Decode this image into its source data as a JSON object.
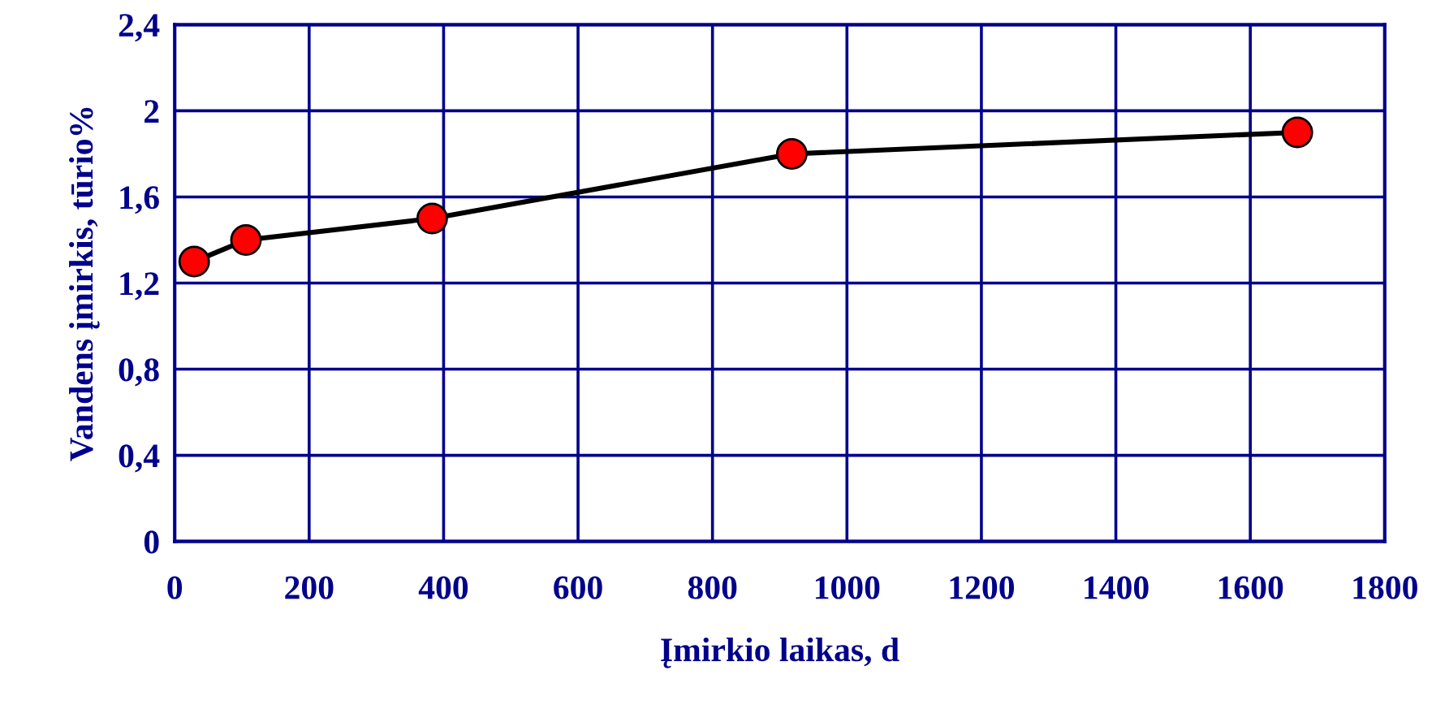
{
  "chart_data": {
    "type": "line",
    "xlabel": "Įmirkio laikas, d",
    "ylabel": "Vandens įmirkis, tūrio%",
    "x": [
      29,
      106,
      383,
      918,
      1670
    ],
    "series": [
      {
        "color": "#000000",
        "values": [
          1.3,
          1.4,
          1.5,
          1.8,
          1.9
        ]
      }
    ],
    "marker": "circle",
    "line_style": "solid",
    "xlim": [
      0,
      1800
    ],
    "xticks": [
      0,
      200,
      400,
      600,
      800,
      1000,
      1200,
      1400,
      1600,
      1800
    ],
    "ylim": [
      0,
      2.4
    ],
    "yticks": [
      0,
      {
        "value": 0.4,
        "label": "0,4"
      },
      {
        "value": 0.8,
        "label": "0,8"
      },
      {
        "value": 1.2,
        "label": "1,2"
      },
      {
        "value": 1.6,
        "label": "1,6"
      },
      2,
      {
        "value": 2.4,
        "label": "2,4"
      }
    ],
    "grid": true
  }
}
